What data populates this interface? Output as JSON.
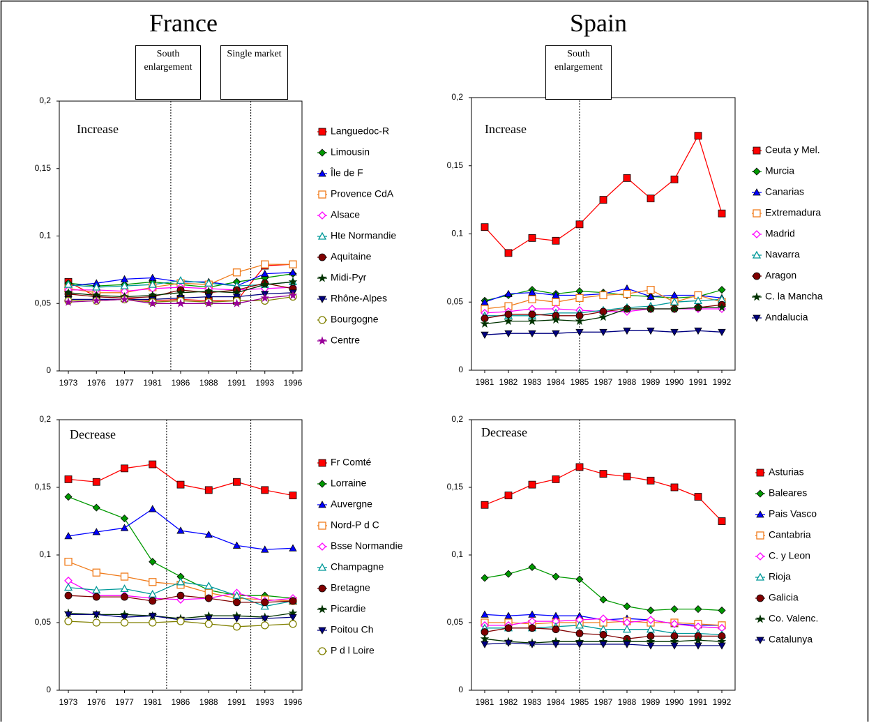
{
  "headings": [
    "France",
    "Spain"
  ],
  "events": [
    "South enlargement",
    "Single market",
    "South enlargement"
  ],
  "chart_data": [
    {
      "type": "line",
      "subtitle": "Increase",
      "legend": "right",
      "ylim": [
        0,
        0.2
      ],
      "yticks": [
        0,
        {
          "value": 0.05,
          "label": "0,05"
        },
        {
          "value": 0.1,
          "label": "0,1"
        },
        {
          "value": 0.15,
          "label": "0,15"
        },
        {
          "value": 0.2,
          "label": "0,2"
        }
      ],
      "categories": [
        "1973",
        "1976",
        "1977",
        "1981",
        "1986",
        "1988",
        "1991",
        "1993",
        "1996"
      ],
      "series": [
        {
          "name": "Languedoc-R",
          "color": "#ff0000",
          "marker": "square",
          "values": [
            0.066,
            0.055,
            0.054,
            0.052,
            0.053,
            0.052,
            0.052,
            0.078,
            0.079
          ]
        },
        {
          "name": "Limousin",
          "color": "#009900",
          "marker": "diamond",
          "values": [
            0.065,
            0.063,
            0.064,
            0.066,
            0.064,
            0.062,
            0.066,
            0.069,
            0.072
          ]
        },
        {
          "name": "Île de F",
          "color": "#0000ff",
          "marker": "triangle",
          "values": [
            0.063,
            0.065,
            0.068,
            0.069,
            0.066,
            0.066,
            0.063,
            0.072,
            0.073
          ]
        },
        {
          "name": "Provence CdA",
          "color": "#f07c1c",
          "marker": "square-open",
          "values": [
            0.061,
            0.058,
            0.058,
            0.062,
            0.065,
            0.064,
            0.073,
            0.079,
            0.079
          ]
        },
        {
          "name": "Alsace",
          "color": "#ff00ff",
          "marker": "diamond-open",
          "values": [
            0.06,
            0.06,
            0.059,
            0.061,
            0.062,
            0.061,
            0.06,
            0.061,
            0.062
          ]
        },
        {
          "name": "Hte Normandie",
          "color": "#009999",
          "marker": "triangle-open",
          "values": [
            0.064,
            0.062,
            0.063,
            0.064,
            0.067,
            0.065,
            0.063,
            0.064,
            0.066
          ]
        },
        {
          "name": "Aquitaine",
          "color": "#800000",
          "marker": "circle",
          "values": [
            0.057,
            0.055,
            0.054,
            0.055,
            0.06,
            0.058,
            0.06,
            0.065,
            0.061
          ]
        },
        {
          "name": "Midi-Pyr",
          "color": "#003300",
          "marker": "star",
          "values": [
            0.058,
            0.056,
            0.055,
            0.056,
            0.058,
            0.059,
            0.058,
            0.064,
            0.066
          ]
        },
        {
          "name": "Rhône-Alpes",
          "color": "#000080",
          "marker": "triangle-down",
          "values": [
            0.053,
            0.053,
            0.053,
            0.053,
            0.054,
            0.055,
            0.055,
            0.057,
            0.058
          ]
        },
        {
          "name": "Bourgogne",
          "color": "#808000",
          "marker": "circle-open",
          "values": [
            0.052,
            0.052,
            0.053,
            0.051,
            0.052,
            0.051,
            0.052,
            0.052,
            0.055
          ]
        },
        {
          "name": "Centre",
          "color": "#990099",
          "marker": "star",
          "values": [
            0.051,
            0.052,
            0.053,
            0.05,
            0.05,
            0.05,
            0.05,
            0.054,
            0.056
          ]
        }
      ]
    },
    {
      "type": "line",
      "subtitle": "Increase",
      "legend": "right",
      "ylim": [
        0,
        0.2
      ],
      "yticks": [
        0,
        {
          "value": 0.05,
          "label": "0,05"
        },
        {
          "value": 0.1,
          "label": "0,1"
        },
        {
          "value": 0.15,
          "label": "0,15"
        },
        {
          "value": 0.2,
          "label": "0,2"
        }
      ],
      "categories": [
        "1981",
        "1982",
        "1983",
        "1984",
        "1985",
        "1987",
        "1988",
        "1989",
        "1990",
        "1991",
        "1992"
      ],
      "series": [
        {
          "name": "Ceuta y Mel.",
          "color": "#ff0000",
          "marker": "square",
          "values": [
            0.105,
            0.086,
            0.097,
            0.095,
            0.107,
            0.125,
            0.141,
            0.126,
            0.14,
            0.172,
            0.115
          ]
        },
        {
          "name": "Murcia",
          "color": "#009900",
          "marker": "diamond",
          "values": [
            0.051,
            0.055,
            0.059,
            0.056,
            0.058,
            0.057,
            0.055,
            0.054,
            0.053,
            0.054,
            0.059
          ]
        },
        {
          "name": "Canarias",
          "color": "#0000ff",
          "marker": "triangle",
          "values": [
            0.05,
            0.056,
            0.057,
            0.055,
            0.055,
            0.056,
            0.06,
            0.054,
            0.055,
            0.055,
            0.053
          ]
        },
        {
          "name": "Extremadura",
          "color": "#f07c1c",
          "marker": "square-open",
          "values": [
            0.045,
            0.047,
            0.052,
            0.05,
            0.053,
            0.055,
            0.056,
            0.059,
            0.05,
            0.055,
            0.05
          ]
        },
        {
          "name": "Madrid",
          "color": "#ff00ff",
          "marker": "diamond-open",
          "values": [
            0.042,
            0.043,
            0.045,
            0.045,
            0.044,
            0.043,
            0.043,
            0.045,
            0.045,
            0.045,
            0.045
          ]
        },
        {
          "name": "Navarra",
          "color": "#009999",
          "marker": "triangle-open",
          "values": [
            0.04,
            0.04,
            0.04,
            0.042,
            0.042,
            0.044,
            0.046,
            0.047,
            0.05,
            0.051,
            0.052
          ]
        },
        {
          "name": "Aragon",
          "color": "#800000",
          "marker": "circle",
          "values": [
            0.038,
            0.041,
            0.041,
            0.04,
            0.04,
            0.043,
            0.045,
            0.045,
            0.045,
            0.046,
            0.048
          ]
        },
        {
          "name": "C. la Mancha",
          "color": "#003300",
          "marker": "star",
          "values": [
            0.034,
            0.036,
            0.036,
            0.037,
            0.036,
            0.039,
            0.045,
            0.045,
            0.045,
            0.046,
            0.046
          ]
        },
        {
          "name": "Andalucia",
          "color": "#000080",
          "marker": "triangle-down",
          "values": [
            0.026,
            0.027,
            0.027,
            0.027,
            0.028,
            0.028,
            0.029,
            0.029,
            0.028,
            0.029,
            0.028
          ]
        }
      ]
    },
    {
      "type": "line",
      "subtitle": "Decrease",
      "legend": "right",
      "ylim": [
        0,
        0.2
      ],
      "yticks": [
        0,
        {
          "value": 0.05,
          "label": "0,05"
        },
        {
          "value": 0.1,
          "label": "0,1"
        },
        {
          "value": 0.15,
          "label": "0,15"
        },
        {
          "value": 0.2,
          "label": "0,2"
        }
      ],
      "categories": [
        "1973",
        "1976",
        "1977",
        "1981",
        "1986",
        "1988",
        "1991",
        "1993",
        "1996"
      ],
      "series": [
        {
          "name": "Fr Comté",
          "color": "#ff0000",
          "marker": "square",
          "values": [
            0.156,
            0.154,
            0.164,
            0.167,
            0.152,
            0.148,
            0.154,
            0.148,
            0.144
          ]
        },
        {
          "name": "Lorraine",
          "color": "#009900",
          "marker": "diamond",
          "values": [
            0.143,
            0.135,
            0.127,
            0.095,
            0.084,
            0.074,
            0.07,
            0.07,
            0.068
          ]
        },
        {
          "name": "Auvergne",
          "color": "#0000ff",
          "marker": "triangle",
          "values": [
            0.114,
            0.117,
            0.12,
            0.134,
            0.118,
            0.115,
            0.107,
            0.104,
            0.105
          ]
        },
        {
          "name": "Nord-P d C",
          "color": "#f07c1c",
          "marker": "square-open",
          "values": [
            0.095,
            0.087,
            0.084,
            0.08,
            0.078,
            0.072,
            0.068,
            0.067,
            0.066
          ]
        },
        {
          "name": "Bsse Normandie",
          "color": "#ff00ff",
          "marker": "diamond-open",
          "values": [
            0.081,
            0.07,
            0.07,
            0.068,
            0.067,
            0.068,
            0.072,
            0.066,
            0.068
          ]
        },
        {
          "name": "Champagne",
          "color": "#009999",
          "marker": "triangle-open",
          "values": [
            0.076,
            0.074,
            0.075,
            0.071,
            0.08,
            0.077,
            0.07,
            0.062,
            0.066
          ]
        },
        {
          "name": "Bretagne",
          "color": "#800000",
          "marker": "circle",
          "values": [
            0.07,
            0.069,
            0.069,
            0.066,
            0.07,
            0.068,
            0.065,
            0.065,
            0.066
          ]
        },
        {
          "name": "Picardie",
          "color": "#003300",
          "marker": "star",
          "values": [
            0.057,
            0.056,
            0.056,
            0.055,
            0.053,
            0.055,
            0.055,
            0.054,
            0.057
          ]
        },
        {
          "name": "Poitou Ch",
          "color": "#000080",
          "marker": "triangle-down",
          "values": [
            0.056,
            0.056,
            0.054,
            0.055,
            0.052,
            0.053,
            0.053,
            0.053,
            0.054
          ]
        },
        {
          "name": "P d l Loire",
          "color": "#808000",
          "marker": "circle-open",
          "values": [
            0.051,
            0.05,
            0.05,
            0.05,
            0.051,
            0.049,
            0.047,
            0.048,
            0.049
          ]
        }
      ]
    },
    {
      "type": "line",
      "subtitle": "Decrease",
      "legend": "right",
      "ylim": [
        0,
        0.2
      ],
      "yticks": [
        0,
        {
          "value": 0.05,
          "label": "0,05"
        },
        {
          "value": 0.1,
          "label": "0,1"
        },
        {
          "value": 0.15,
          "label": "0,15"
        },
        {
          "value": 0.2,
          "label": "0,2"
        }
      ],
      "categories": [
        "1981",
        "1982",
        "1983",
        "1984",
        "1985",
        "1987",
        "1988",
        "1989",
        "1990",
        "1991",
        "1992"
      ],
      "series": [
        {
          "name": "Asturias",
          "color": "#ff0000",
          "marker": "square",
          "values": [
            0.137,
            0.144,
            0.152,
            0.156,
            0.165,
            0.16,
            0.158,
            0.155,
            0.15,
            0.143,
            0.125
          ]
        },
        {
          "name": "Baleares",
          "color": "#009900",
          "marker": "diamond",
          "values": [
            0.083,
            0.086,
            0.091,
            0.084,
            0.082,
            0.067,
            0.062,
            0.059,
            0.06,
            0.06,
            0.059
          ]
        },
        {
          "name": "Pais Vasco",
          "color": "#0000ff",
          "marker": "triangle",
          "values": [
            0.056,
            0.055,
            0.056,
            0.055,
            0.055,
            0.052,
            0.053,
            0.052,
            0.049,
            0.048,
            0.048
          ]
        },
        {
          "name": "Cantabria",
          "color": "#f07c1c",
          "marker": "square-open",
          "values": [
            0.05,
            0.05,
            0.049,
            0.05,
            0.05,
            0.05,
            0.051,
            0.05,
            0.05,
            0.049,
            0.048
          ]
        },
        {
          "name": "C. y Leon",
          "color": "#ff00ff",
          "marker": "diamond-open",
          "values": [
            0.048,
            0.048,
            0.051,
            0.051,
            0.052,
            0.053,
            0.05,
            0.052,
            0.049,
            0.047,
            0.046
          ]
        },
        {
          "name": "Rioja",
          "color": "#009999",
          "marker": "triangle-open",
          "values": [
            0.046,
            0.046,
            0.046,
            0.047,
            0.048,
            0.045,
            0.045,
            0.045,
            0.042,
            0.042,
            0.041
          ]
        },
        {
          "name": "Galicia",
          "color": "#800000",
          "marker": "circle",
          "values": [
            0.043,
            0.046,
            0.046,
            0.045,
            0.042,
            0.041,
            0.038,
            0.04,
            0.04,
            0.04,
            0.04
          ]
        },
        {
          "name": "Co. Valenc.",
          "color": "#003300",
          "marker": "star",
          "values": [
            0.038,
            0.036,
            0.035,
            0.036,
            0.036,
            0.036,
            0.036,
            0.036,
            0.036,
            0.037,
            0.036
          ]
        },
        {
          "name": "Catalunya",
          "color": "#000080",
          "marker": "triangle-down",
          "values": [
            0.034,
            0.035,
            0.034,
            0.034,
            0.034,
            0.034,
            0.034,
            0.033,
            0.033,
            0.033,
            0.033
          ]
        }
      ]
    }
  ]
}
